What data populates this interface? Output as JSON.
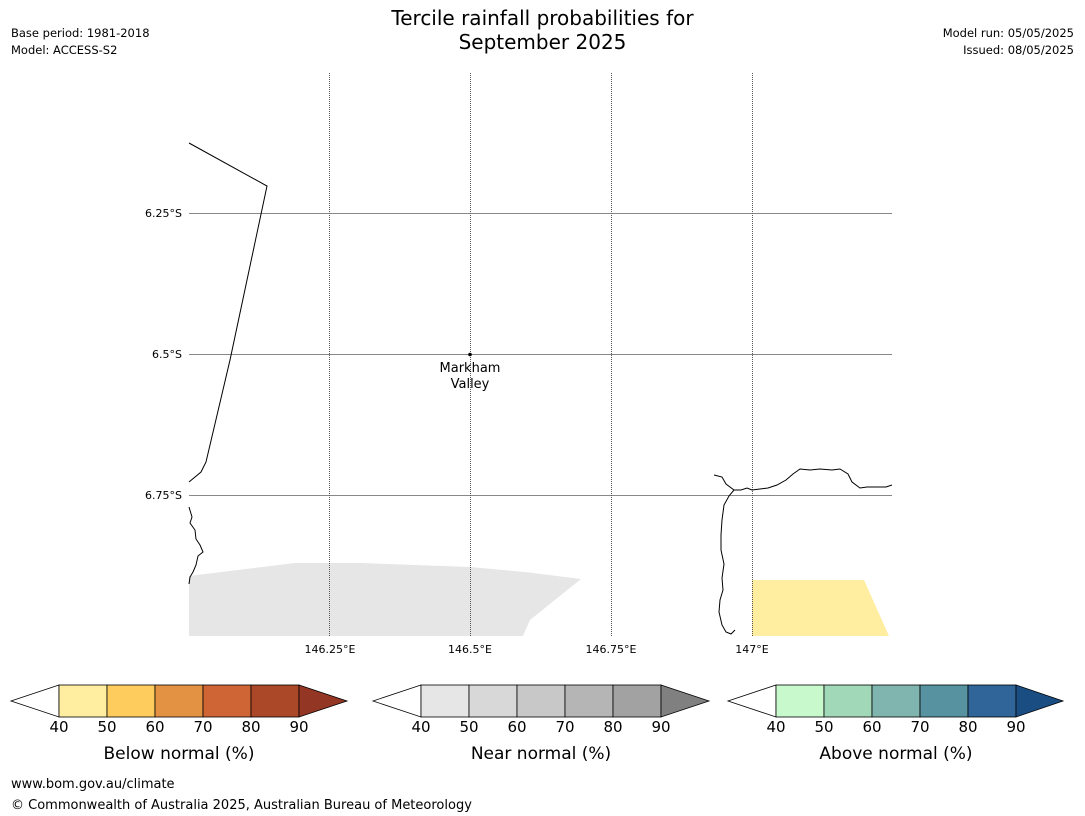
{
  "header": {
    "title_line1": "Tercile rainfall probabilities for",
    "title_line2": "September 2025",
    "base_period": "Base period: 1981-2018",
    "model": "Model: ACCESS-S2",
    "model_run": "Model run: 05/05/2025",
    "issued": "Issued: 08/05/2025"
  },
  "map": {
    "lat_labels": [
      "6.25°S",
      "6.5°S",
      "6.75°S"
    ],
    "lon_labels": [
      "146.25°E",
      "146.5°E",
      "146.75°E",
      "147°E"
    ],
    "place_label_line1": "Markham",
    "place_label_line2": "Valley",
    "near_normal_color": "#e6e6e6",
    "below_normal_color": "#ffeda0"
  },
  "colorbars": [
    {
      "name": "below",
      "label": "Below normal (%)",
      "ticks": [
        "40",
        "50",
        "60",
        "70",
        "80",
        "90"
      ],
      "colors": [
        "#ffeda0",
        "#fecc5c",
        "#e39244",
        "#cf6534",
        "#ab4828",
        "#933624"
      ]
    },
    {
      "name": "near",
      "label": "Near normal (%)",
      "ticks": [
        "40",
        "50",
        "60",
        "70",
        "80",
        "90"
      ],
      "colors": [
        "#e6e6e6",
        "#d8d8d8",
        "#c8c8c8",
        "#b5b5b5",
        "#a2a2a2",
        "#808080"
      ]
    },
    {
      "name": "above",
      "label": "Above normal (%)",
      "ticks": [
        "40",
        "50",
        "60",
        "70",
        "80",
        "90"
      ],
      "colors": [
        "#c7f9cc",
        "#a1d9b8",
        "#7fb5ae",
        "#5692a0",
        "#2f6598",
        "#1a4d82"
      ]
    }
  ],
  "footer": {
    "url": "www.bom.gov.au/climate",
    "copyright": "© Commonwealth of Australia 2025, Australian Bureau of Meteorology"
  }
}
